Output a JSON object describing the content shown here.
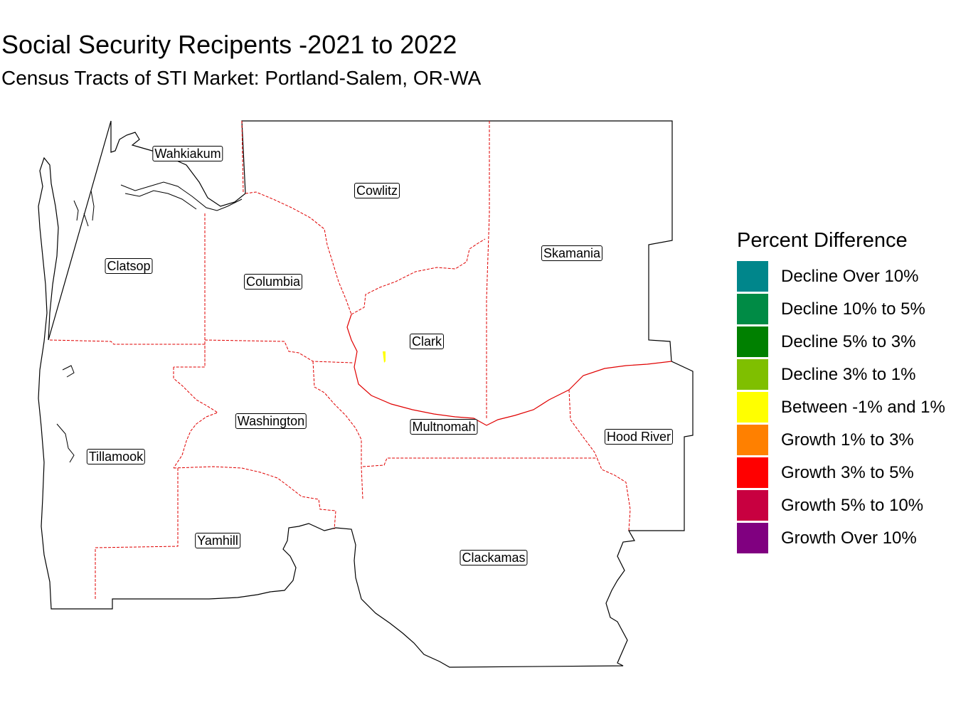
{
  "title": "Social Security Recipents -2021 to 2022",
  "subtitle": "Census Tracts of STI Market: Portland-Salem, OR-WA",
  "counties": [
    {
      "id": "wahkiakum",
      "name": "Wahkiakum"
    },
    {
      "id": "cowlitz",
      "name": "Cowlitz"
    },
    {
      "id": "skamania",
      "name": "Skamania"
    },
    {
      "id": "clatsop",
      "name": "Clatsop"
    },
    {
      "id": "columbia",
      "name": "Columbia"
    },
    {
      "id": "clark",
      "name": "Clark"
    },
    {
      "id": "washington",
      "name": "Washington"
    },
    {
      "id": "multnomah",
      "name": "Multnomah"
    },
    {
      "id": "tillamook",
      "name": "Tillamook"
    },
    {
      "id": "hood-river",
      "name": "Hood River"
    },
    {
      "id": "yamhill",
      "name": "Yamhill"
    },
    {
      "id": "clackamas",
      "name": "Clackamas"
    }
  ],
  "legend": {
    "title": "Percent Difference",
    "items": [
      {
        "label": "Decline Over 10%",
        "color": "#00868B"
      },
      {
        "label": "Decline 10% to 5%",
        "color": "#008B45"
      },
      {
        "label": "Decline 5% to 3%",
        "color": "#008000"
      },
      {
        "label": "Decline 3% to 1%",
        "color": "#7FBF00"
      },
      {
        "label": "Between -1% and 1%",
        "color": "#FFFF00"
      },
      {
        "label": "Growth 1% to 3%",
        "color": "#FF8000"
      },
      {
        "label": "Growth 3% to 5%",
        "color": "#FF0000"
      },
      {
        "label": "Growth 5% to 10%",
        "color": "#C80040"
      },
      {
        "label": "Growth Over 10%",
        "color": "#800080"
      }
    ]
  },
  "highlighted_tract": {
    "county": "Clark",
    "category": "Between -1% and 1%",
    "color": "#FFFF00"
  },
  "colors": {
    "outline": "#000000",
    "inner_boundary": "#E00000"
  }
}
